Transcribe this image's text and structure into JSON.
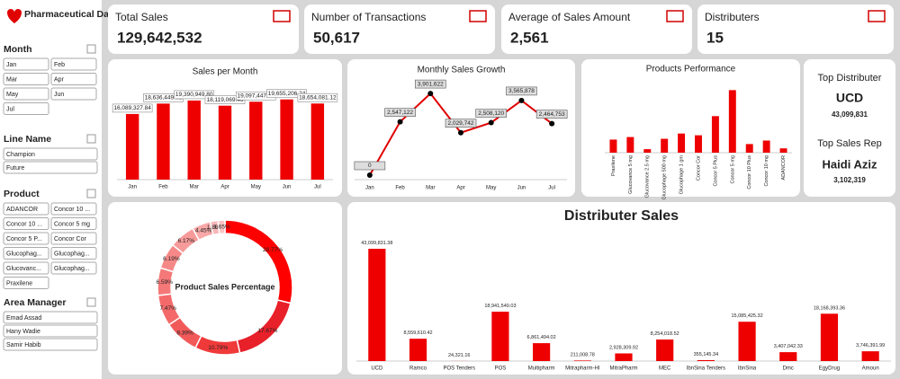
{
  "sidebar": {
    "title": "Pharmaceutical Dashboard",
    "sections": [
      {
        "title": "Month",
        "items": [
          "Jan",
          "Feb",
          "Mar",
          "Apr",
          "May",
          "Jun",
          "Jul"
        ]
      },
      {
        "title": "Line Name",
        "items": [
          "Champion",
          "Future"
        ]
      },
      {
        "title": "Product",
        "items": [
          "ADANCOR",
          "Concor 10 ...",
          "Concor 10 ...",
          "Concor 5 mg",
          "Concor 5 P...",
          "Concor Cor",
          "Glucophag...",
          "Glucophag...",
          "Glucovanc...",
          "Glucophag...",
          "Praxilene"
        ]
      },
      {
        "title": "Area Manager",
        "items": [
          "Emad Assad",
          "Hany Wadie",
          "Samir Habib"
        ]
      }
    ]
  },
  "kpis": [
    {
      "label": "Total Sales",
      "value": "129,642,532"
    },
    {
      "label": "Number of Transactions",
      "value": "50,617"
    },
    {
      "label": "Average of Sales Amount",
      "value": "2,561"
    },
    {
      "label": "Distributers",
      "value": "15"
    }
  ],
  "side_panel": {
    "top_distributer_label": "Top Distributer",
    "top_distributer": "UCD",
    "top_distributer_value": "43,099,831",
    "top_rep_label": "Top Sales Rep",
    "top_rep": "Haidi Aziz",
    "top_rep_value": "3,102,319"
  },
  "chart_data": [
    {
      "type": "bar",
      "title": "Sales per Month",
      "color": "#ee0000",
      "categories": [
        "Jan",
        "Feb",
        "Mar",
        "Apr",
        "May",
        "Jun",
        "Jul"
      ],
      "values": [
        16089327.84,
        18636449.62,
        19390949.8,
        18119069.46,
        19097447.47,
        19655206.24,
        18654081.12
      ],
      "value_labels": [
        "16,089,327.84",
        "18,636,449.62",
        "19,390,949.80",
        "18,119,069.46",
        "19,097,447.47",
        "19,655,206.24",
        "18,654,081.12"
      ]
    },
    {
      "type": "line",
      "title": "Monthly Sales Growth",
      "color": "#e00000",
      "categories": [
        "Jan",
        "Feb",
        "Mar",
        "Apr",
        "May",
        "Jun",
        "Jul"
      ],
      "values": [
        0,
        2547122,
        3901622,
        2029742,
        2508120,
        3565878,
        2464753
      ],
      "value_labels": [
        "0",
        "2,547,122",
        "3,901,622",
        "2,029,742",
        "2,508,120",
        "3,565,878",
        "2,464,753"
      ]
    },
    {
      "type": "bar",
      "title": "Products Performance",
      "color": "#ee0000",
      "categories": [
        "Praxilene",
        "Glucovance 5 mg",
        "Glucovance 2.5 mg",
        "Glucophage 500 mg",
        "Glucophage 1 gm",
        "Concor Cor",
        "Concor 5 Plus",
        "Concor 5 mg",
        "Concor 10 Plus",
        "Concor 10 mg",
        "ADANCOR"
      ],
      "values": [
        8200000,
        9800000,
        2200000,
        8700000,
        12000000,
        10900000,
        22900000,
        39200000,
        5400000,
        7600000,
        2700000
      ]
    },
    {
      "type": "pie",
      "title": "Product Sales Percentage",
      "colors": [
        "#ff0000",
        "#e8202a",
        "#f03a3a",
        "#f25a5a",
        "#f46a6a",
        "#f57878",
        "#f68888",
        "#f79a9a",
        "#f8a8a8",
        "#f9b6b6",
        "#fac4c4"
      ],
      "values": [
        28.77,
        17.67,
        10.79,
        8.39,
        7.47,
        6.59,
        6.19,
        6.17,
        4.45,
        1.86,
        1.65
      ],
      "value_labels": [
        "28.77%",
        "17.67%",
        "10.79%",
        "8.39%",
        "7.47%",
        "6.59%",
        "6.19%",
        "6.17%",
        "4.45%",
        "1.86%",
        "1.65%"
      ]
    },
    {
      "type": "bar",
      "title": "Distributer Sales",
      "color": "#ee0000",
      "categories": [
        "UCD",
        "Ramco",
        "POS Tenders",
        "POS",
        "Multipharm",
        "Mitrapharm-HI",
        "MitraPharm",
        "MEC",
        "IbnSina Tenders",
        "IbnSina",
        "Dmc",
        "EgyDrug",
        "Amoun"
      ],
      "values": [
        43099831.38,
        8559610.42,
        24321.16,
        18941540.03,
        6861494.02,
        211008.78,
        2928309.92,
        8254018.52,
        355145.34,
        15085425.32,
        3407042.33,
        18168393.36,
        3746391.99
      ],
      "value_labels": [
        "43,099,831.38",
        "8,559,610.42",
        "24,321.16",
        "18,941,540.03",
        "6,861,494.02",
        "211,008.78",
        "2,928,309.92",
        "8,254,018.52",
        "355,145.34",
        "15,085,425.32",
        "3,407,042.33",
        "18,168,393.36",
        "3,746,391.99"
      ]
    }
  ]
}
